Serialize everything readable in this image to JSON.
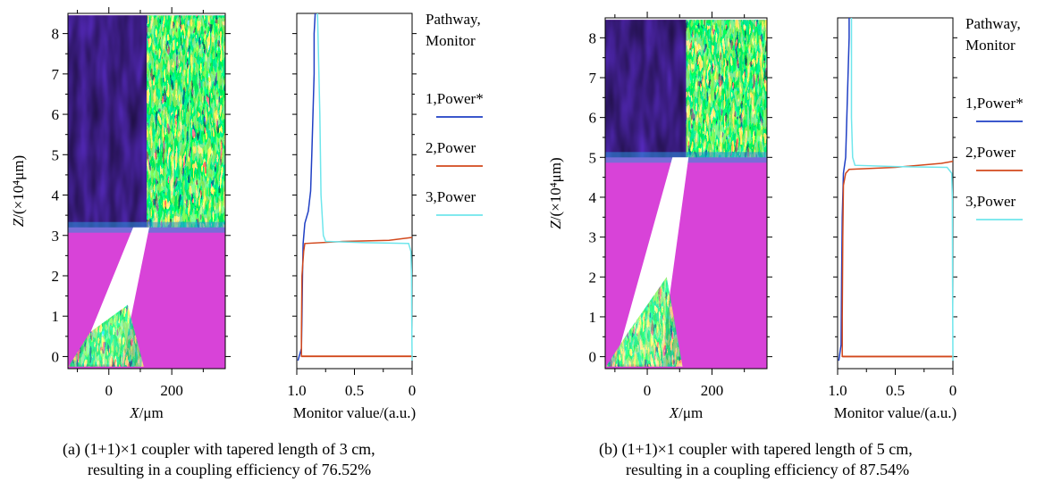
{
  "colors": {
    "field_left_core": "#5a2cc8",
    "field_background": "#d843d8",
    "pathway1": "#1f3fc4",
    "pathway2": "#d2481c",
    "pathway3": "#6fe6ec"
  },
  "chart_data": [
    {
      "type": "heatmap",
      "panel": "a",
      "xlabel_var": "X",
      "xlabel_unit": "/μm",
      "ylabel_var": "Z",
      "ylabel_unit": "/(×10⁴μm)",
      "xticks": [
        "0",
        "200"
      ],
      "yticks": [
        "0",
        "1",
        "2",
        "3",
        "4",
        "5",
        "6",
        "7",
        "8"
      ],
      "xlim": [
        -130,
        370
      ],
      "ylim": [
        -0.3,
        8.5
      ],
      "coupler_region_z": [
        0,
        3.2
      ],
      "taper_length_cm": 3
    },
    {
      "type": "line",
      "panel": "a",
      "xlabel": "Monitor value/(a.u.)",
      "xticks": [
        "1.0",
        "0.5",
        "0"
      ],
      "xlim": [
        1.0,
        0
      ],
      "ylim": [
        -0.3,
        8.5
      ],
      "legend_title": [
        "Pathway,",
        "Monitor"
      ],
      "legend_position": "right",
      "series": [
        {
          "name": "1,Power*",
          "color": "#1f3fc4",
          "points": [
            [
              0.99,
              -0.1
            ],
            [
              0.96,
              0.2
            ],
            [
              0.955,
              1
            ],
            [
              0.95,
              2
            ],
            [
              0.945,
              2.8
            ],
            [
              0.93,
              3.3
            ],
            [
              0.9,
              3.6
            ],
            [
              0.88,
              4.1
            ],
            [
              0.87,
              5
            ],
            [
              0.86,
              6
            ],
            [
              0.85,
              7
            ],
            [
              0.85,
              8
            ],
            [
              0.84,
              8.5
            ]
          ]
        },
        {
          "name": "2,Power",
          "color": "#d2481c",
          "points": [
            [
              0.96,
              0
            ],
            [
              0.3,
              0
            ],
            [
              0,
              0
            ],
            [
              0,
              0.01
            ],
            [
              0.96,
              0.01
            ],
            [
              0.96,
              0.5
            ],
            [
              0.955,
              2
            ],
            [
              0.94,
              2.6
            ],
            [
              0.93,
              2.8
            ],
            [
              0.6,
              2.85
            ],
            [
              0.2,
              2.88
            ],
            [
              0,
              2.95
            ]
          ]
        },
        {
          "name": "3,Power",
          "color": "#6fe6ec",
          "points": [
            [
              0,
              -0.1
            ],
            [
              0.003,
              1
            ],
            [
              0.005,
              2
            ],
            [
              0.01,
              2.6
            ],
            [
              0.03,
              2.8
            ],
            [
              0.4,
              2.82
            ],
            [
              0.75,
              2.85
            ],
            [
              0.77,
              3.0
            ],
            [
              0.79,
              4
            ],
            [
              0.8,
              6
            ],
            [
              0.82,
              8.5
            ]
          ]
        }
      ]
    },
    {
      "type": "heatmap",
      "panel": "b",
      "xlabel_var": "X",
      "xlabel_unit": "/μm",
      "ylabel_var": "Z",
      "ylabel_unit": "/(×10⁴μm)",
      "xticks": [
        "0",
        "200"
      ],
      "yticks": [
        "0",
        "1",
        "2",
        "3",
        "4",
        "5",
        "6",
        "7",
        "8"
      ],
      "xlim": [
        -130,
        370
      ],
      "ylim": [
        -0.3,
        8.5
      ],
      "coupler_region_z": [
        0,
        5.0
      ],
      "taper_length_cm": 5
    },
    {
      "type": "line",
      "panel": "b",
      "xlabel": "Monitor value/(a.u.)",
      "xticks": [
        "1.0",
        "0.5",
        "0"
      ],
      "xlim": [
        1.0,
        0
      ],
      "ylim": [
        -0.3,
        8.5
      ],
      "legend_title": [
        "Pathway,",
        "Monitor"
      ],
      "legend_position": "right",
      "series": [
        {
          "name": "1,Power*",
          "color": "#1f3fc4",
          "points": [
            [
              0.99,
              -0.1
            ],
            [
              0.97,
              0.3
            ],
            [
              0.965,
              2
            ],
            [
              0.96,
              3.5
            ],
            [
              0.95,
              4.6
            ],
            [
              0.93,
              5.0
            ],
            [
              0.92,
              6
            ],
            [
              0.91,
              7
            ],
            [
              0.9,
              8
            ],
            [
              0.9,
              8.5
            ]
          ]
        },
        {
          "name": "2,Power",
          "color": "#d2481c",
          "points": [
            [
              0.96,
              0
            ],
            [
              0.3,
              0
            ],
            [
              0,
              0
            ],
            [
              0,
              0.01
            ],
            [
              0.96,
              0.01
            ],
            [
              0.96,
              1
            ],
            [
              0.955,
              3
            ],
            [
              0.95,
              4.3
            ],
            [
              0.93,
              4.6
            ],
            [
              0.9,
              4.7
            ],
            [
              0.5,
              4.75
            ],
            [
              0.1,
              4.85
            ],
            [
              0,
              4.9
            ]
          ]
        },
        {
          "name": "3,Power",
          "color": "#6fe6ec",
          "points": [
            [
              0,
              -0.1
            ],
            [
              0.003,
              2
            ],
            [
              0.005,
              4
            ],
            [
              0.01,
              4.6
            ],
            [
              0.05,
              4.75
            ],
            [
              0.5,
              4.77
            ],
            [
              0.85,
              4.8
            ],
            [
              0.87,
              5.0
            ],
            [
              0.88,
              6
            ],
            [
              0.88,
              8.5
            ]
          ]
        }
      ]
    }
  ],
  "captions": {
    "a_line1": "(a) (1+1)×1 coupler with tapered length of 3 cm,",
    "a_line2": "resulting in a coupling efficiency of 76.52%",
    "b_line1": "(b) (1+1)×1 coupler with tapered length of 5 cm,",
    "b_line2": "resulting in a coupling efficiency of 87.54%"
  }
}
